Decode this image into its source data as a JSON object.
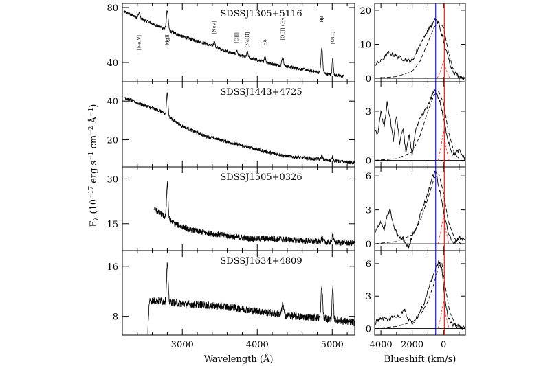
{
  "chart_data": {
    "type": "line",
    "ylabel": "F_λ (10^-17 erg s^-1 cm^-2 Å^-1)",
    "ylabel_parts": [
      "F",
      "λ",
      " (10",
      "−17",
      " erg s",
      "−1",
      " cm",
      "−2",
      " Å",
      "−1",
      ")"
    ],
    "xlabel_left": "Wavelength (Å)",
    "xlabel_right": "Blueshift (km/s)",
    "left_x_ticks": [
      3000,
      4000,
      5000
    ],
    "left_xlim": [
      2200,
      5300
    ],
    "right_x_ticks": [
      4000,
      2000,
      0
    ],
    "right_x_tick_labels": [
      "4000",
      "2000",
      "0"
    ],
    "right_xlim": [
      4400,
      -1400
    ],
    "vertical_lines": [
      {
        "x": 500,
        "color": "#0000ff"
      },
      {
        "x": -50,
        "color": "#ff0000"
      }
    ],
    "emission_line_labels": [
      {
        "text": "[NeIV]",
        "x": 2425
      },
      {
        "text": "MgII",
        "x": 2800
      },
      {
        "text": "[NeV]",
        "x": 3426
      },
      {
        "text": "[OII]",
        "x": 3727
      },
      {
        "text": "[NeIII]",
        "x": 3869
      },
      {
        "text": "Hδ",
        "x": 4102
      },
      {
        "text": "[OIII]+Hγ",
        "x": 4340
      },
      {
        "text": "Hβ",
        "x": 4861
      },
      {
        "text": "[OIII]",
        "x": 5007
      }
    ],
    "panels": [
      {
        "name": "SDSSJ1305+5116",
        "ylim": [
          26,
          83
        ],
        "y_ticks": [
          40,
          80
        ],
        "continuum": [
          [
            2220,
            77
          ],
          [
            2400,
            73
          ],
          [
            2700,
            66
          ],
          [
            3000,
            59
          ],
          [
            3300,
            54
          ],
          [
            3600,
            48
          ],
          [
            3900,
            43
          ],
          [
            4200,
            39
          ],
          [
            4500,
            36
          ],
          [
            4800,
            33
          ],
          [
            5000,
            31
          ],
          [
            5150,
            30
          ]
        ],
        "x_start": 2220,
        "x_end": 5150,
        "noise": 1.2,
        "peaks": [
          [
            2800,
            14,
            12
          ],
          [
            2425,
            4,
            10
          ],
          [
            3426,
            4,
            10
          ],
          [
            3727,
            3,
            10
          ],
          [
            3869,
            4,
            10
          ],
          [
            4102,
            4,
            10
          ],
          [
            4340,
            6,
            12
          ],
          [
            4861,
            18,
            11
          ],
          [
            5007,
            12,
            9
          ]
        ],
        "right_ylim": [
          -1,
          22
        ],
        "right_y_ticks": [
          0,
          10,
          20
        ],
        "right_profile": [
          [
            4400,
            4
          ],
          [
            4000,
            5
          ],
          [
            3500,
            7.5
          ],
          [
            3000,
            6.5
          ],
          [
            2500,
            5.5
          ],
          [
            2000,
            5
          ],
          [
            1500,
            10
          ],
          [
            1000,
            14
          ],
          [
            700,
            16
          ],
          [
            500,
            17.5
          ],
          [
            300,
            16
          ],
          [
            0,
            11
          ],
          [
            -300,
            6
          ],
          [
            -600,
            2
          ],
          [
            -1000,
            0.5
          ],
          [
            -1400,
            0.2
          ]
        ],
        "right_fit": [
          [
            4400,
            0
          ],
          [
            3000,
            0.5
          ],
          [
            2000,
            2
          ],
          [
            1500,
            5
          ],
          [
            1000,
            10.5
          ],
          [
            600,
            15
          ],
          [
            300,
            16.5
          ],
          [
            0,
            15
          ],
          [
            -300,
            8
          ],
          [
            -600,
            3
          ],
          [
            -1000,
            0.5
          ],
          [
            -1400,
            0
          ]
        ],
        "right_narrow": [
          [
            400,
            0
          ],
          [
            200,
            2
          ],
          [
            0,
            5
          ],
          [
            -200,
            2
          ],
          [
            -400,
            0
          ]
        ]
      },
      {
        "name": "SDSSJ1443+4725",
        "ylim": [
          6,
          50
        ],
        "y_ticks": [
          20,
          40
        ],
        "continuum": [
          [
            2220,
            42
          ],
          [
            2400,
            39
          ],
          [
            2700,
            35
          ],
          [
            3000,
            27
          ],
          [
            3300,
            22
          ],
          [
            3600,
            19
          ],
          [
            3900,
            16
          ],
          [
            4200,
            13
          ],
          [
            4500,
            11
          ],
          [
            4800,
            10
          ],
          [
            5300,
            8
          ]
        ],
        "x_start": 2220,
        "x_end": 5300,
        "noise": 0.9,
        "peaks": [
          [
            2800,
            12,
            10
          ],
          [
            4861,
            2,
            10
          ],
          [
            5007,
            2,
            9
          ]
        ],
        "right_ylim": [
          -0.4,
          4.8
        ],
        "right_y_ticks": [
          0,
          3
        ],
        "right_profile": [
          [
            4400,
            2
          ],
          [
            4200,
            1.5
          ],
          [
            4000,
            3
          ],
          [
            3800,
            2
          ],
          [
            3600,
            3.5
          ],
          [
            3400,
            2.5
          ],
          [
            3200,
            1.2
          ],
          [
            3000,
            2.8
          ],
          [
            2800,
            1
          ],
          [
            2600,
            2
          ],
          [
            2400,
            0.5
          ],
          [
            2200,
            1.5
          ],
          [
            2000,
            0.3
          ],
          [
            1800,
            1.8
          ],
          [
            1500,
            2.5
          ],
          [
            1200,
            3
          ],
          [
            900,
            3.5
          ],
          [
            600,
            4.3
          ],
          [
            400,
            4
          ],
          [
            200,
            3.5
          ],
          [
            0,
            2.5
          ],
          [
            -300,
            1.2
          ],
          [
            -600,
            0.3
          ],
          [
            -1000,
            0.6
          ],
          [
            -1400,
            0
          ]
        ],
        "right_fit": [
          [
            4400,
            0
          ],
          [
            3000,
            0.1
          ],
          [
            2000,
            0.5
          ],
          [
            1500,
            1.5
          ],
          [
            1000,
            3
          ],
          [
            600,
            4
          ],
          [
            300,
            4.2
          ],
          [
            0,
            3.5
          ],
          [
            -300,
            1.8
          ],
          [
            -700,
            0.4
          ],
          [
            -1100,
            0
          ],
          [
            -1400,
            0
          ]
        ],
        "right_narrow": [
          [
            350,
            0
          ],
          [
            180,
            0.7
          ],
          [
            0,
            1.8
          ],
          [
            -180,
            0.7
          ],
          [
            -350,
            0
          ]
        ]
      },
      {
        "name": "SDSSJ1505+0326",
        "ylim": [
          6,
          34
        ],
        "y_ticks": [
          15,
          30
        ],
        "continuum": [
          [
            2620,
            20
          ],
          [
            2700,
            18.5
          ],
          [
            2900,
            15
          ],
          [
            3100,
            13
          ],
          [
            3300,
            12
          ],
          [
            3600,
            11
          ],
          [
            3900,
            10
          ],
          [
            4200,
            10
          ],
          [
            4500,
            9.5
          ],
          [
            4800,
            9
          ],
          [
            5300,
            8.5
          ]
        ],
        "x_start": 2620,
        "x_end": 5300,
        "noise": 1.0,
        "peaks": [
          [
            2800,
            12,
            10
          ],
          [
            4861,
            1.5,
            10
          ],
          [
            5007,
            3,
            9
          ]
        ],
        "right_ylim": [
          -0.6,
          6.8
        ],
        "right_y_ticks": [
          0,
          3,
          6
        ],
        "right_profile": [
          [
            4400,
            0.8
          ],
          [
            4200,
            1.5
          ],
          [
            4000,
            2
          ],
          [
            3800,
            1.2
          ],
          [
            3600,
            2.5
          ],
          [
            3400,
            3
          ],
          [
            3200,
            1.5
          ],
          [
            3000,
            1
          ],
          [
            2800,
            0.5
          ],
          [
            2600,
            0.5
          ],
          [
            2400,
            0
          ],
          [
            2200,
            -0.3
          ],
          [
            2000,
            0.8
          ],
          [
            1700,
            1.5
          ],
          [
            1400,
            3
          ],
          [
            1100,
            4
          ],
          [
            800,
            5.5
          ],
          [
            500,
            6.5
          ],
          [
            300,
            5
          ],
          [
            0,
            3
          ],
          [
            -300,
            1
          ],
          [
            -600,
            0
          ],
          [
            -1000,
            0.6
          ],
          [
            -1400,
            0.3
          ]
        ],
        "right_fit": [
          [
            4400,
            0
          ],
          [
            3000,
            0.2
          ],
          [
            2000,
            0.8
          ],
          [
            1500,
            2
          ],
          [
            1000,
            4
          ],
          [
            600,
            5.8
          ],
          [
            300,
            6.2
          ],
          [
            0,
            4.5
          ],
          [
            -300,
            2
          ],
          [
            -700,
            0.5
          ],
          [
            -1100,
            0
          ],
          [
            -1400,
            0
          ]
        ],
        "right_narrow": [
          [
            350,
            0
          ],
          [
            180,
            1
          ],
          [
            0,
            2.5
          ],
          [
            -180,
            1
          ],
          [
            -350,
            0
          ]
        ]
      },
      {
        "name": "SDSSJ1634+4809",
        "ylim": [
          5,
          18.5
        ],
        "y_ticks": [
          8,
          16
        ],
        "continuum": [
          [
            2540,
            5.5
          ],
          [
            2560,
            10.5
          ],
          [
            2700,
            10.5
          ],
          [
            3000,
            10
          ],
          [
            3300,
            9.8
          ],
          [
            3600,
            9.5
          ],
          [
            3900,
            9
          ],
          [
            4200,
            8.5
          ],
          [
            4500,
            8
          ],
          [
            4800,
            7.8
          ],
          [
            5300,
            7
          ]
        ],
        "x_start": 2540,
        "x_end": 5300,
        "noise": 0.6,
        "peaks": [
          [
            2800,
            6,
            10
          ],
          [
            4340,
            1.5,
            12
          ],
          [
            4861,
            5,
            11
          ],
          [
            5007,
            5,
            9
          ]
        ],
        "right_ylim": [
          -0.6,
          7.2
        ],
        "right_y_ticks": [
          0,
          3,
          6
        ],
        "right_profile": [
          [
            4400,
            0.5
          ],
          [
            4000,
            1
          ],
          [
            3600,
            0.8
          ],
          [
            3200,
            1.2
          ],
          [
            2800,
            1
          ],
          [
            2500,
            1.8
          ],
          [
            2300,
            1
          ],
          [
            2000,
            0.5
          ],
          [
            1800,
            0.8
          ],
          [
            1500,
            1.5
          ],
          [
            1200,
            2.5
          ],
          [
            900,
            4
          ],
          [
            600,
            5.2
          ],
          [
            300,
            6.2
          ],
          [
            100,
            5.5
          ],
          [
            -100,
            2.5
          ],
          [
            -300,
            1
          ],
          [
            -600,
            0.4
          ],
          [
            -1000,
            0.2
          ],
          [
            -1400,
            0
          ]
        ],
        "right_fit": [
          [
            4400,
            0
          ],
          [
            3000,
            0.2
          ],
          [
            2000,
            0.6
          ],
          [
            1500,
            1.2
          ],
          [
            1000,
            2.5
          ],
          [
            600,
            4.2
          ],
          [
            300,
            5.8
          ],
          [
            100,
            6
          ],
          [
            -100,
            4
          ],
          [
            -400,
            1.5
          ],
          [
            -800,
            0.3
          ],
          [
            -1400,
            0
          ]
        ],
        "right_narrow": [
          [
            350,
            0
          ],
          [
            180,
            1
          ],
          [
            0,
            2.5
          ],
          [
            -180,
            1
          ],
          [
            -350,
            0
          ]
        ]
      }
    ]
  }
}
